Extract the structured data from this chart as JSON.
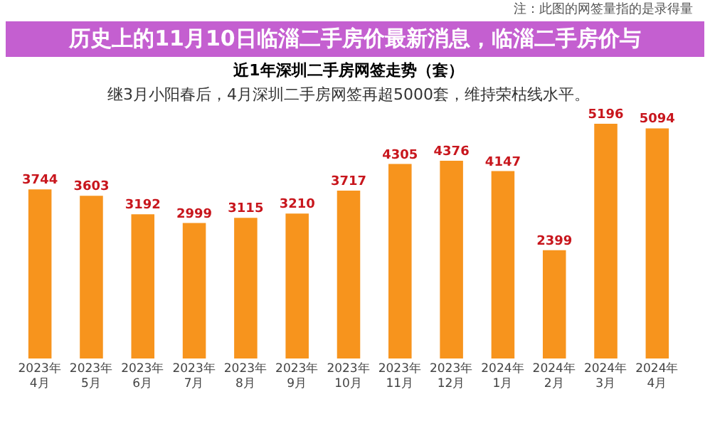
{
  "chart_data": {
    "type": "bar",
    "title": "近1年深圳二手房网签走势（套）",
    "subtitle": "继3月小阳春后，4月深圳二手房网签再超5000套，维持荣枯线水平。",
    "annotations": [
      "注：此图的网签量指的是录得量",
      "历史上的11月10日临淄二手房价最新消息，临淄二手房价与"
    ],
    "categories": [
      "2023年4月",
      "2023年5月",
      "2023年6月",
      "2023年7月",
      "2023年8月",
      "2023年9月",
      "2023年10月",
      "2023年11月",
      "2023年12月",
      "2024年1月",
      "2024年2月",
      "2024年3月",
      "2024年4月"
    ],
    "values": [
      3744,
      3603,
      3192,
      2999,
      3115,
      3210,
      3717,
      4305,
      4376,
      4147,
      2399,
      5196,
      5094
    ],
    "color": "#f7941d",
    "data_labels": true,
    "tick_labels": "x"
  }
}
